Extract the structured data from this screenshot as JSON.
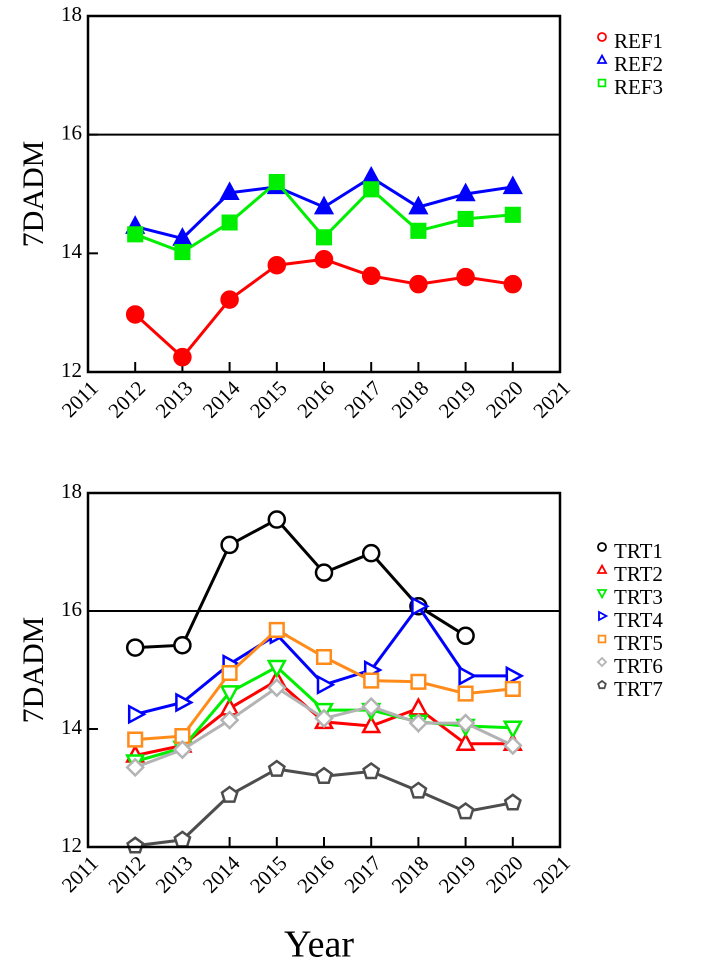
{
  "chart_data": [
    {
      "type": "line",
      "ylabel": "7DADM",
      "x": [
        2012,
        2013,
        2014,
        2015,
        2016,
        2017,
        2018,
        2019,
        2020
      ],
      "xlim": [
        2011,
        2021
      ],
      "xticks": [
        2011,
        2012,
        2013,
        2014,
        2015,
        2016,
        2017,
        2018,
        2019,
        2020,
        2021
      ],
      "ylim": [
        12,
        18
      ],
      "yticks": [
        12,
        14,
        16,
        18
      ],
      "reference_line": 16,
      "marker_fill": true,
      "series": [
        {
          "name": "REF1",
          "color": "#ff0000",
          "marker": "circle",
          "values": [
            12.97,
            12.25,
            13.22,
            13.8,
            13.9,
            13.62,
            13.48,
            13.6,
            13.48
          ]
        },
        {
          "name": "REF2",
          "color": "#0000ff",
          "marker": "triangle-up",
          "values": [
            14.45,
            14.25,
            15.02,
            15.12,
            14.78,
            15.28,
            14.78,
            15.0,
            15.12
          ]
        },
        {
          "name": "REF3",
          "color": "#00ee00",
          "marker": "square",
          "values": [
            14.32,
            14.02,
            14.52,
            15.2,
            14.27,
            15.08,
            14.38,
            14.58,
            14.65
          ]
        }
      ]
    },
    {
      "type": "line",
      "ylabel": "7DADM",
      "xlabel": "Year",
      "x": [
        2012,
        2013,
        2014,
        2015,
        2016,
        2017,
        2018,
        2019,
        2020
      ],
      "xlim": [
        2011,
        2021
      ],
      "xticks": [
        2011,
        2012,
        2013,
        2014,
        2015,
        2016,
        2017,
        2018,
        2019,
        2020,
        2021
      ],
      "ylim": [
        12,
        18
      ],
      "yticks": [
        12,
        14,
        16,
        18
      ],
      "reference_line": 16,
      "marker_fill": false,
      "series": [
        {
          "name": "TRT1",
          "color": "#000000",
          "marker": "circle",
          "values": [
            15.38,
            15.42,
            17.12,
            17.55,
            16.65,
            16.98,
            16.08,
            15.58,
            null
          ]
        },
        {
          "name": "TRT2",
          "color": "#ff0000",
          "marker": "triangle-up",
          "values": [
            13.55,
            13.72,
            14.35,
            14.82,
            14.12,
            14.05,
            14.35,
            13.75,
            13.75
          ]
        },
        {
          "name": "TRT3",
          "color": "#00ee00",
          "marker": "triangle-down",
          "values": [
            13.45,
            13.68,
            14.62,
            15.05,
            14.32,
            14.32,
            14.12,
            14.05,
            14.02
          ]
        },
        {
          "name": "TRT4",
          "color": "#0000ff",
          "marker": "triangle-right",
          "values": [
            14.25,
            14.45,
            15.1,
            15.6,
            14.75,
            15.0,
            16.08,
            14.9,
            14.9
          ]
        },
        {
          "name": "TRT5",
          "color": "#ff8c1a",
          "marker": "square",
          "values": [
            13.82,
            13.88,
            14.95,
            15.68,
            15.22,
            14.82,
            14.8,
            14.6,
            14.68
          ]
        },
        {
          "name": "TRT6",
          "color": "#b3b3b3",
          "marker": "diamond",
          "values": [
            13.35,
            13.65,
            14.15,
            14.7,
            14.18,
            14.38,
            14.1,
            14.1,
            13.72
          ]
        },
        {
          "name": "TRT7",
          "color": "#4d4d4d",
          "marker": "pentagon",
          "values": [
            12.02,
            12.12,
            12.88,
            13.32,
            13.2,
            13.28,
            12.95,
            12.6,
            12.75
          ]
        }
      ]
    }
  ]
}
